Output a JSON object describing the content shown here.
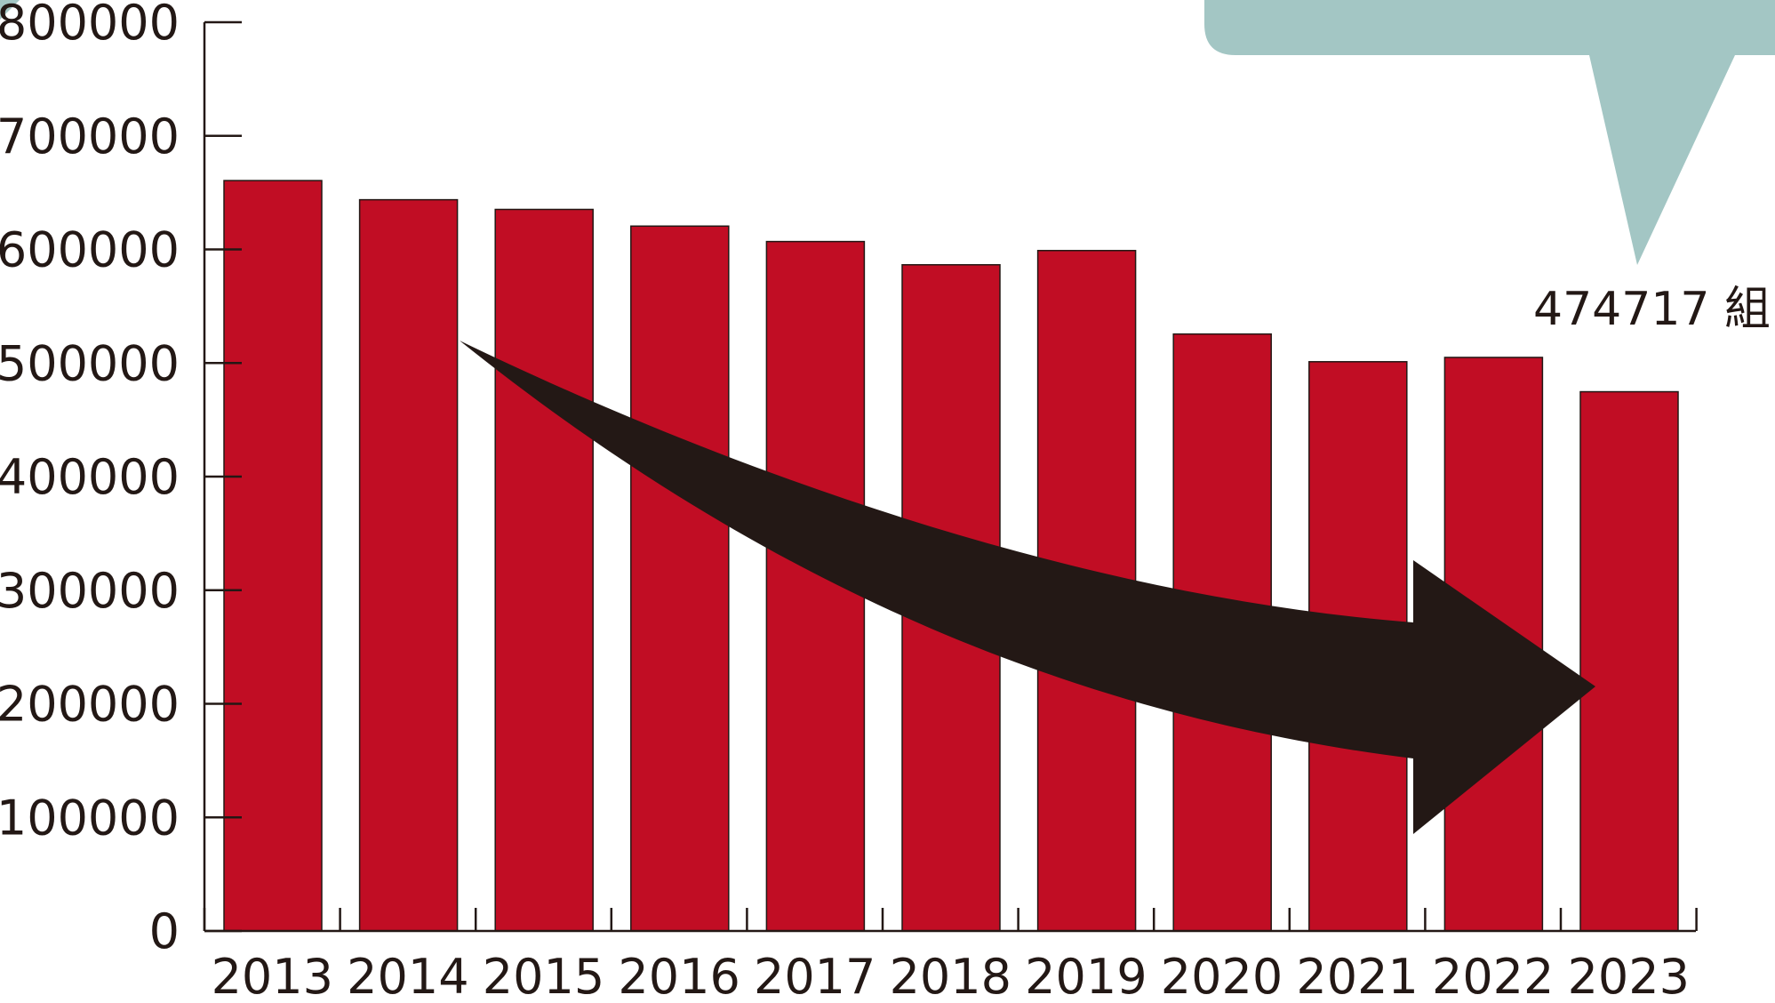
{
  "chart_data": {
    "type": "bar",
    "categories": [
      "2013",
      "2014",
      "2015",
      "2016",
      "2017",
      "2018",
      "2019",
      "2020",
      "2021",
      "2022",
      "2023"
    ],
    "values": [
      660613,
      643749,
      635225,
      620531,
      606952,
      586481,
      599007,
      525507,
      501138,
      504930,
      474717
    ],
    "ylim": [
      0,
      800000
    ],
    "yticks": [
      0,
      100000,
      200000,
      300000,
      400000,
      500000,
      600000,
      700000,
      800000
    ],
    "title": "",
    "xlabel": "",
    "ylabel": "",
    "grid": false,
    "legend": "none",
    "bar_color": "#c10d24",
    "axis_color": "#231815",
    "trend_arrow_color": "#231815",
    "callout_color": "#a3c6c4"
  },
  "annotation": {
    "value_label": "474717 組"
  }
}
